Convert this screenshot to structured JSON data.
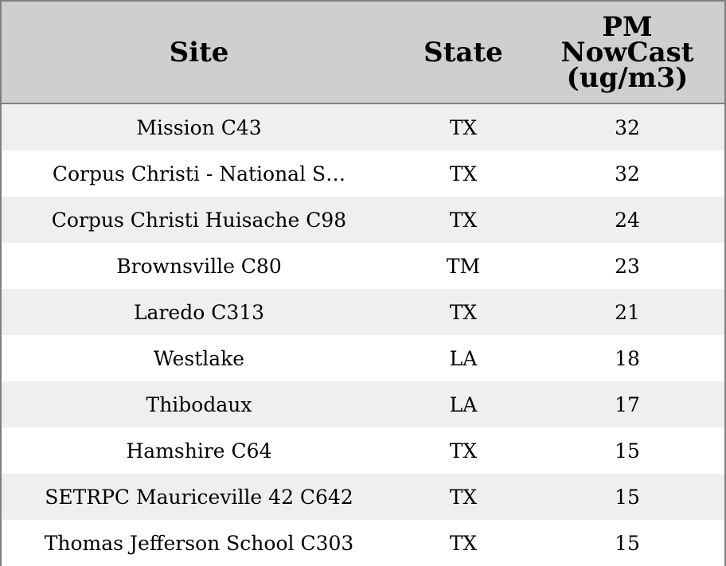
{
  "chart_data": {
    "type": "table",
    "columns": [
      "Site",
      "State",
      "PM\nNowCast\n(ug/m3)"
    ],
    "rows": [
      [
        "Mission C43",
        "TX",
        "32"
      ],
      [
        "Corpus Christi - National S…",
        "TX",
        "32"
      ],
      [
        "Corpus Christi Huisache C98",
        "TX",
        "24"
      ],
      [
        "Brownsville C80",
        "TM",
        "23"
      ],
      [
        "Laredo C313",
        "TX",
        "21"
      ],
      [
        "Westlake",
        "LA",
        "18"
      ],
      [
        "Thibodaux",
        "LA",
        "17"
      ],
      [
        "Hamshire C64",
        "TX",
        "15"
      ],
      [
        "SETRPC Mauriceville 42 C642",
        "TX",
        "15"
      ],
      [
        "Thomas Jefferson School C303",
        "TX",
        "15"
      ]
    ],
    "colors": {
      "header_bg": "#cfcfcf",
      "row_odd_bg": "#efefef",
      "row_even_bg": "#ffffff",
      "border": "#808080"
    }
  }
}
